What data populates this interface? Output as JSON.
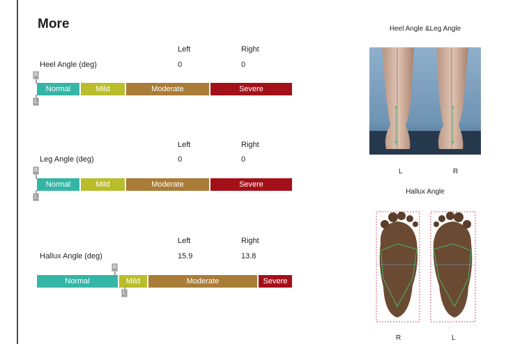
{
  "page": {
    "title": "More"
  },
  "columns": {
    "left": "Left",
    "right": "Right"
  },
  "metrics": [
    {
      "label": "Heel Angle (deg)",
      "left": "0",
      "right": "0",
      "scale": [
        "Normal",
        "Mild",
        "Moderate",
        "Severe"
      ]
    },
    {
      "label": "Leg Angle (deg)",
      "left": "0",
      "right": "0",
      "scale": [
        "Normal",
        "Mild",
        "Moderate",
        "Severe"
      ]
    },
    {
      "label": "Hallux Angle (deg)",
      "left": "15.9",
      "right": "13.8",
      "scale": [
        "Normal",
        "Mild",
        "Moderate",
        "Severe"
      ]
    }
  ],
  "markers": {
    "right": "R",
    "left": "L"
  },
  "images": {
    "heel_leg": {
      "title": "Heel Angle &Leg Angle",
      "label_left": "L",
      "label_right": "R"
    },
    "hallux": {
      "title": "Hallux Angle",
      "label_left": "R",
      "label_right": "L"
    }
  },
  "colors": {
    "normal": "#35b5a6",
    "mild": "#b9bd2b",
    "moderate": "#a97c37",
    "severe": "#a4101a"
  }
}
